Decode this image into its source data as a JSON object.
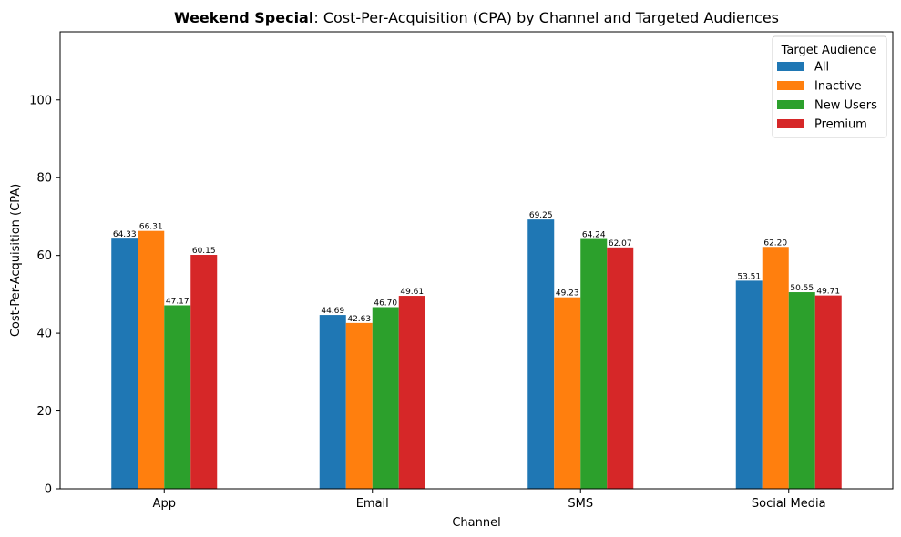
{
  "chart_data": {
    "type": "bar",
    "title_bold": "Weekend Special",
    "title_rest": ": Cost-Per-Acquisition (CPA) by Channel and Targeted Audiences",
    "xlabel": "Channel",
    "ylabel": "Cost-Per-Acquisition (CPA)",
    "categories": [
      "App",
      "Email",
      "SMS",
      "Social Media"
    ],
    "ylim": [
      0,
      117.5
    ],
    "yticks": [
      0,
      20,
      40,
      60,
      80,
      100
    ],
    "grid": false,
    "legend": {
      "title": "Target Audience",
      "position": "top-right"
    },
    "series": [
      {
        "name": "All",
        "color": "#1f77b4",
        "values": [
          64.33,
          44.69,
          69.25,
          53.51
        ]
      },
      {
        "name": "Inactive",
        "color": "#ff7f0e",
        "values": [
          66.31,
          42.63,
          49.23,
          62.2
        ]
      },
      {
        "name": "New Users",
        "color": "#2ca02c",
        "values": [
          47.17,
          46.7,
          64.24,
          50.55
        ]
      },
      {
        "name": "Premium",
        "color": "#d62728",
        "values": [
          60.15,
          49.61,
          62.07,
          49.71
        ]
      }
    ]
  }
}
